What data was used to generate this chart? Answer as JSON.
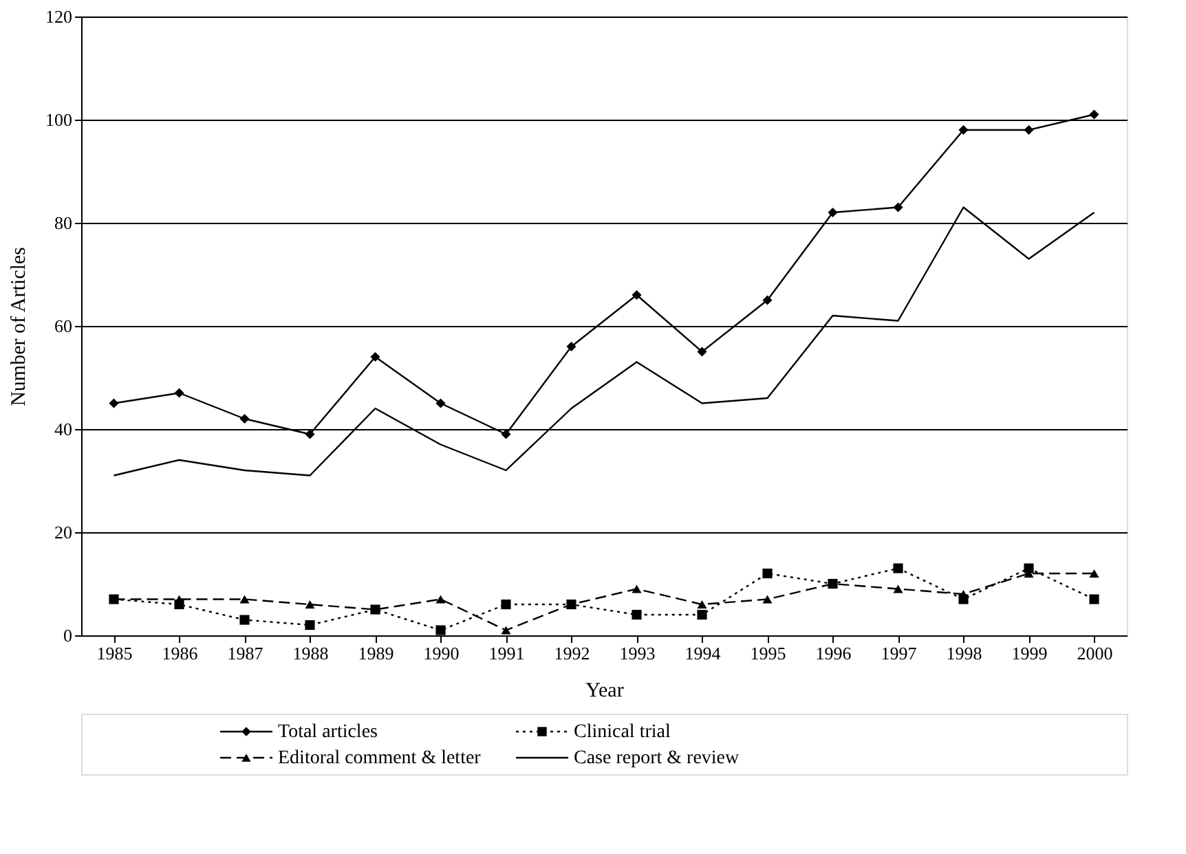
{
  "chart_data": {
    "type": "line",
    "xlabel": "Year",
    "ylabel": "Number of Articles",
    "categories": [
      "1985",
      "1986",
      "1987",
      "1988",
      "1989",
      "1990",
      "1991",
      "1992",
      "1993",
      "1994",
      "1995",
      "1996",
      "1997",
      "1998",
      "1999",
      "2000"
    ],
    "series": [
      {
        "name": "Total articles",
        "color": "#000000",
        "marker": "diamond",
        "line_style": "solid",
        "values": [
          45,
          47,
          42,
          39,
          54,
          45,
          39,
          56,
          66,
          55,
          65,
          82,
          83,
          98,
          98,
          101
        ]
      },
      {
        "name": "Clinical trial",
        "color": "#000000",
        "marker": "square",
        "line_style": "dotted",
        "values": [
          7,
          6,
          3,
          2,
          5,
          1,
          6,
          6,
          4,
          4,
          12,
          10,
          13,
          7,
          13,
          7
        ]
      },
      {
        "name": "Editoral comment & letter",
        "color": "#000000",
        "marker": "triangle",
        "line_style": "dashed",
        "values": [
          7,
          7,
          7,
          6,
          5,
          7,
          1,
          6,
          9,
          6,
          7,
          10,
          9,
          8,
          12,
          12
        ]
      },
      {
        "name": "Case report & review",
        "color": "#000000",
        "marker": "none",
        "line_style": "solid",
        "values": [
          31,
          34,
          32,
          31,
          44,
          37,
          32,
          44,
          53,
          45,
          46,
          62,
          61,
          83,
          73,
          82
        ]
      }
    ],
    "ylim": [
      0,
      120
    ],
    "yticks": [
      0,
      20,
      40,
      60,
      80,
      100,
      120
    ],
    "grid": "y",
    "legend": "bottom"
  }
}
